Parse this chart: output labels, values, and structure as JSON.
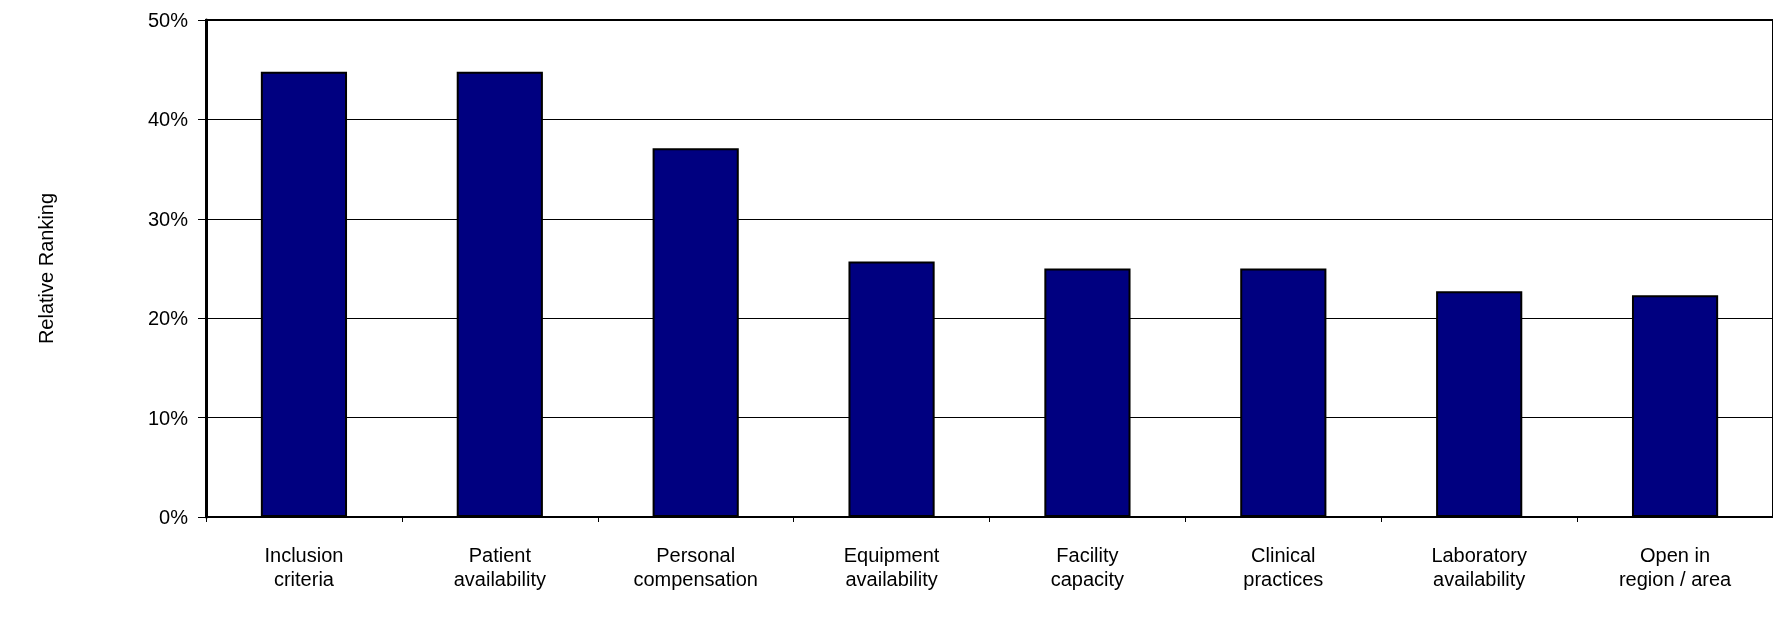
{
  "chart_data": {
    "type": "bar",
    "ylabel": "Relative Ranking",
    "categories": [
      "Inclusion\ncriteria",
      "Patient\navailability",
      "Personal\ncompensation",
      "Equipment\navailability",
      "Facility\ncapacity",
      "Clinical\npractices",
      "Laboratory\navailability",
      "Open in\nregion / area"
    ],
    "values": [
      44.8,
      44.8,
      37.1,
      25.7,
      25.0,
      25.0,
      22.7,
      22.3
    ],
    "color": "#000080",
    "ylim": [
      0,
      50
    ],
    "yticks": [
      {
        "value": 0,
        "label": "0%"
      },
      {
        "value": 10,
        "label": "10%"
      },
      {
        "value": 20,
        "label": "20%"
      },
      {
        "value": 30,
        "label": "30%"
      },
      {
        "value": 40,
        "label": "40%"
      },
      {
        "value": 50,
        "label": "50%"
      }
    ],
    "grid": "y"
  }
}
